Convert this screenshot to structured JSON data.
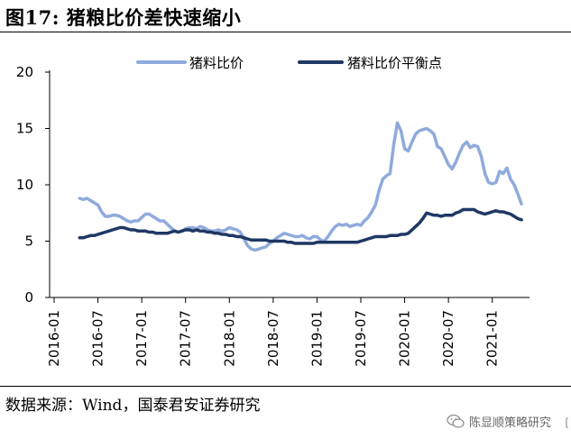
{
  "figure": {
    "title": "图17: 猪粮比价差快速缩小",
    "source": "数据来源：Wind，国泰君安证券研究",
    "watermark": "陈显顺策略研究",
    "edge_mark": "["
  },
  "chart_data": {
    "type": "line",
    "title": "图17: 猪粮比价差快速缩小",
    "xlabel": "",
    "ylabel": "",
    "ylim": [
      0,
      20
    ],
    "yticks": [
      0,
      5,
      10,
      15,
      20
    ],
    "xlim": [
      0,
      63
    ],
    "xticks": [
      {
        "label": "2016-01",
        "x": 0
      },
      {
        "label": "2016-07",
        "x": 6
      },
      {
        "label": "2017-01",
        "x": 12
      },
      {
        "label": "2017-07",
        "x": 18
      },
      {
        "label": "2018-01",
        "x": 24
      },
      {
        "label": "2018-07",
        "x": 30
      },
      {
        "label": "2019-01",
        "x": 36
      },
      {
        "label": "2019-07",
        "x": 42
      },
      {
        "label": "2020-01",
        "x": 48
      },
      {
        "label": "2020-07",
        "x": 54
      },
      {
        "label": "2021-01",
        "x": 60
      }
    ],
    "x_unit": "months since 2016-01",
    "legend_position": "top",
    "grid": false,
    "series": [
      {
        "name": "猪料比价",
        "color": "#8faadc",
        "points": [
          [
            3.5,
            8.8
          ],
          [
            4,
            8.7
          ],
          [
            4.5,
            8.8
          ],
          [
            5,
            8.6
          ],
          [
            5.5,
            8.4
          ],
          [
            6,
            8.2
          ],
          [
            6.5,
            7.6
          ],
          [
            7,
            7.2
          ],
          [
            7.5,
            7.2
          ],
          [
            8,
            7.3
          ],
          [
            8.5,
            7.3
          ],
          [
            9,
            7.2
          ],
          [
            9.5,
            7.0
          ],
          [
            10,
            6.8
          ],
          [
            10.5,
            6.7
          ],
          [
            11,
            6.8
          ],
          [
            11.5,
            6.8
          ],
          [
            12,
            7.1
          ],
          [
            12.5,
            7.4
          ],
          [
            13,
            7.4
          ],
          [
            13.5,
            7.2
          ],
          [
            14,
            7.0
          ],
          [
            14.5,
            6.8
          ],
          [
            15,
            6.8
          ],
          [
            15.5,
            6.5
          ],
          [
            16,
            6.2
          ],
          [
            16.5,
            5.9
          ],
          [
            17,
            5.8
          ],
          [
            17.5,
            5.9
          ],
          [
            18,
            6.1
          ],
          [
            18.5,
            6.2
          ],
          [
            19,
            6.2
          ],
          [
            19.5,
            6.1
          ],
          [
            20,
            6.3
          ],
          [
            20.5,
            6.2
          ],
          [
            21,
            6.0
          ],
          [
            21.5,
            5.9
          ],
          [
            22,
            5.9
          ],
          [
            22.5,
            6.0
          ],
          [
            23,
            5.9
          ],
          [
            23.5,
            6.0
          ],
          [
            24,
            6.2
          ],
          [
            24.5,
            6.1
          ],
          [
            25,
            6.0
          ],
          [
            25.5,
            5.8
          ],
          [
            26,
            5.2
          ],
          [
            26.5,
            4.6
          ],
          [
            27,
            4.3
          ],
          [
            27.5,
            4.2
          ],
          [
            28,
            4.3
          ],
          [
            28.5,
            4.4
          ],
          [
            29,
            4.5
          ],
          [
            29.5,
            4.8
          ],
          [
            30,
            5.0
          ],
          [
            30.5,
            5.3
          ],
          [
            31,
            5.5
          ],
          [
            31.5,
            5.7
          ],
          [
            32,
            5.6
          ],
          [
            32.5,
            5.5
          ],
          [
            33,
            5.4
          ],
          [
            33.5,
            5.4
          ],
          [
            34,
            5.5
          ],
          [
            34.5,
            5.3
          ],
          [
            35,
            5.2
          ],
          [
            35.5,
            5.4
          ],
          [
            36,
            5.4
          ],
          [
            36.5,
            5.1
          ],
          [
            37,
            5.0
          ],
          [
            37.5,
            5.4
          ],
          [
            38,
            5.9
          ],
          [
            38.5,
            6.3
          ],
          [
            39,
            6.5
          ],
          [
            39.5,
            6.4
          ],
          [
            40,
            6.5
          ],
          [
            40.5,
            6.3
          ],
          [
            41,
            6.4
          ],
          [
            41.5,
            6.5
          ],
          [
            42,
            6.4
          ],
          [
            42.5,
            6.8
          ],
          [
            43,
            7.1
          ],
          [
            43.5,
            7.6
          ],
          [
            44,
            8.2
          ],
          [
            44.5,
            9.5
          ],
          [
            45,
            10.5
          ],
          [
            45.5,
            10.8
          ],
          [
            46,
            11.0
          ],
          [
            46.5,
            13.5
          ],
          [
            47,
            15.5
          ],
          [
            47.5,
            14.8
          ],
          [
            48,
            13.2
          ],
          [
            48.5,
            13.0
          ],
          [
            49,
            13.8
          ],
          [
            49.5,
            14.5
          ],
          [
            50,
            14.8
          ],
          [
            50.5,
            14.9
          ],
          [
            51,
            15.0
          ],
          [
            51.5,
            14.8
          ],
          [
            52,
            14.5
          ],
          [
            52.5,
            13.4
          ],
          [
            53,
            13.2
          ],
          [
            53.5,
            12.5
          ],
          [
            54,
            11.8
          ],
          [
            54.5,
            11.4
          ],
          [
            55,
            12.0
          ],
          [
            55.5,
            12.8
          ],
          [
            56,
            13.5
          ],
          [
            56.5,
            13.8
          ],
          [
            57,
            13.3
          ],
          [
            57.5,
            13.5
          ],
          [
            58,
            13.4
          ],
          [
            58.5,
            12.5
          ],
          [
            59,
            11.0
          ],
          [
            59.5,
            10.2
          ],
          [
            60,
            10.1
          ],
          [
            60.5,
            10.2
          ],
          [
            61,
            11.2
          ],
          [
            61.5,
            11.0
          ],
          [
            62,
            11.5
          ],
          [
            62.5,
            10.5
          ],
          [
            63,
            10.0
          ],
          [
            63.5,
            9.2
          ],
          [
            64,
            8.3
          ]
        ]
      },
      {
        "name": "猪料比价平衡点",
        "color": "#1f3864",
        "points": [
          [
            3.5,
            5.3
          ],
          [
            4,
            5.3
          ],
          [
            4.5,
            5.4
          ],
          [
            5,
            5.5
          ],
          [
            5.5,
            5.5
          ],
          [
            6,
            5.6
          ],
          [
            6.5,
            5.7
          ],
          [
            7,
            5.8
          ],
          [
            7.5,
            5.9
          ],
          [
            8,
            6.0
          ],
          [
            8.5,
            6.1
          ],
          [
            9,
            6.2
          ],
          [
            9.5,
            6.2
          ],
          [
            10,
            6.1
          ],
          [
            10.5,
            6.0
          ],
          [
            11,
            6.0
          ],
          [
            11.5,
            5.9
          ],
          [
            12,
            5.9
          ],
          [
            12.5,
            5.9
          ],
          [
            13,
            5.8
          ],
          [
            13.5,
            5.8
          ],
          [
            14,
            5.7
          ],
          [
            14.5,
            5.7
          ],
          [
            15,
            5.7
          ],
          [
            15.5,
            5.7
          ],
          [
            16,
            5.8
          ],
          [
            16.5,
            5.9
          ],
          [
            17,
            5.8
          ],
          [
            17.5,
            5.9
          ],
          [
            18,
            6.0
          ],
          [
            18.5,
            6.0
          ],
          [
            19,
            5.9
          ],
          [
            19.5,
            6.0
          ],
          [
            20,
            5.9
          ],
          [
            20.5,
            5.9
          ],
          [
            21,
            5.8
          ],
          [
            21.5,
            5.8
          ],
          [
            22,
            5.7
          ],
          [
            22.5,
            5.7
          ],
          [
            23,
            5.6
          ],
          [
            23.5,
            5.6
          ],
          [
            24,
            5.5
          ],
          [
            24.5,
            5.5
          ],
          [
            25,
            5.4
          ],
          [
            25.5,
            5.4
          ],
          [
            26,
            5.3
          ],
          [
            26.5,
            5.2
          ],
          [
            27,
            5.1
          ],
          [
            27.5,
            5.1
          ],
          [
            28,
            5.1
          ],
          [
            28.5,
            5.1
          ],
          [
            29,
            5.1
          ],
          [
            29.5,
            5.0
          ],
          [
            30,
            5.0
          ],
          [
            30.5,
            5.0
          ],
          [
            31,
            5.0
          ],
          [
            31.5,
            5.0
          ],
          [
            32,
            4.9
          ],
          [
            32.5,
            4.9
          ],
          [
            33,
            4.8
          ],
          [
            33.5,
            4.8
          ],
          [
            34,
            4.8
          ],
          [
            34.5,
            4.8
          ],
          [
            35,
            4.8
          ],
          [
            35.5,
            4.8
          ],
          [
            36,
            4.9
          ],
          [
            36.5,
            4.9
          ],
          [
            37,
            4.9
          ],
          [
            37.5,
            4.9
          ],
          [
            38,
            4.9
          ],
          [
            38.5,
            4.9
          ],
          [
            39,
            4.9
          ],
          [
            39.5,
            4.9
          ],
          [
            40,
            4.9
          ],
          [
            40.5,
            4.9
          ],
          [
            41,
            4.9
          ],
          [
            41.5,
            4.9
          ],
          [
            42,
            5.0
          ],
          [
            42.5,
            5.1
          ],
          [
            43,
            5.2
          ],
          [
            43.5,
            5.3
          ],
          [
            44,
            5.4
          ],
          [
            44.5,
            5.4
          ],
          [
            45,
            5.4
          ],
          [
            45.5,
            5.4
          ],
          [
            46,
            5.5
          ],
          [
            46.5,
            5.5
          ],
          [
            47,
            5.5
          ],
          [
            47.5,
            5.6
          ],
          [
            48,
            5.6
          ],
          [
            48.5,
            5.7
          ],
          [
            49,
            6.0
          ],
          [
            49.5,
            6.3
          ],
          [
            50,
            6.6
          ],
          [
            50.5,
            7.0
          ],
          [
            51,
            7.5
          ],
          [
            51.5,
            7.4
          ],
          [
            52,
            7.3
          ],
          [
            52.5,
            7.3
          ],
          [
            53,
            7.2
          ],
          [
            53.5,
            7.3
          ],
          [
            54,
            7.3
          ],
          [
            54.5,
            7.3
          ],
          [
            55,
            7.5
          ],
          [
            55.5,
            7.6
          ],
          [
            56,
            7.8
          ],
          [
            56.5,
            7.8
          ],
          [
            57,
            7.8
          ],
          [
            57.5,
            7.8
          ],
          [
            58,
            7.6
          ],
          [
            58.5,
            7.5
          ],
          [
            59,
            7.4
          ],
          [
            59.5,
            7.5
          ],
          [
            60,
            7.6
          ],
          [
            60.5,
            7.7
          ],
          [
            61,
            7.6
          ],
          [
            61.5,
            7.6
          ],
          [
            62,
            7.5
          ],
          [
            62.5,
            7.4
          ],
          [
            63,
            7.2
          ],
          [
            63.5,
            7.0
          ],
          [
            64,
            6.9
          ]
        ]
      }
    ]
  }
}
